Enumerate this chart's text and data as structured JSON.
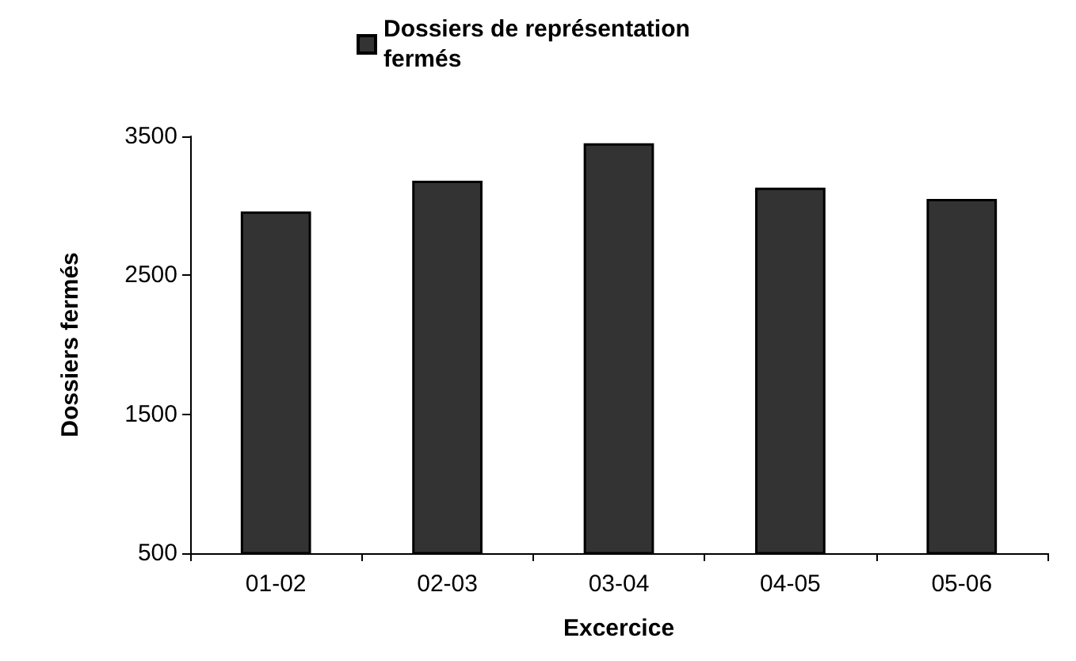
{
  "chart_data": {
    "type": "bar",
    "xlabel": "Excercice",
    "ylabel": "Dossiers fermés",
    "categories": [
      "01-02",
      "02-03",
      "03-04",
      "04-05",
      "05-06"
    ],
    "series": [
      {
        "name": "Dossiers de représentation fermés",
        "color": "#333333",
        "values": [
          2960,
          3180,
          3450,
          3130,
          3050
        ]
      }
    ],
    "ylim": [
      500,
      3500
    ],
    "yticks": [
      500,
      1500,
      2500,
      3500
    ],
    "grid": false,
    "legend": "top"
  }
}
